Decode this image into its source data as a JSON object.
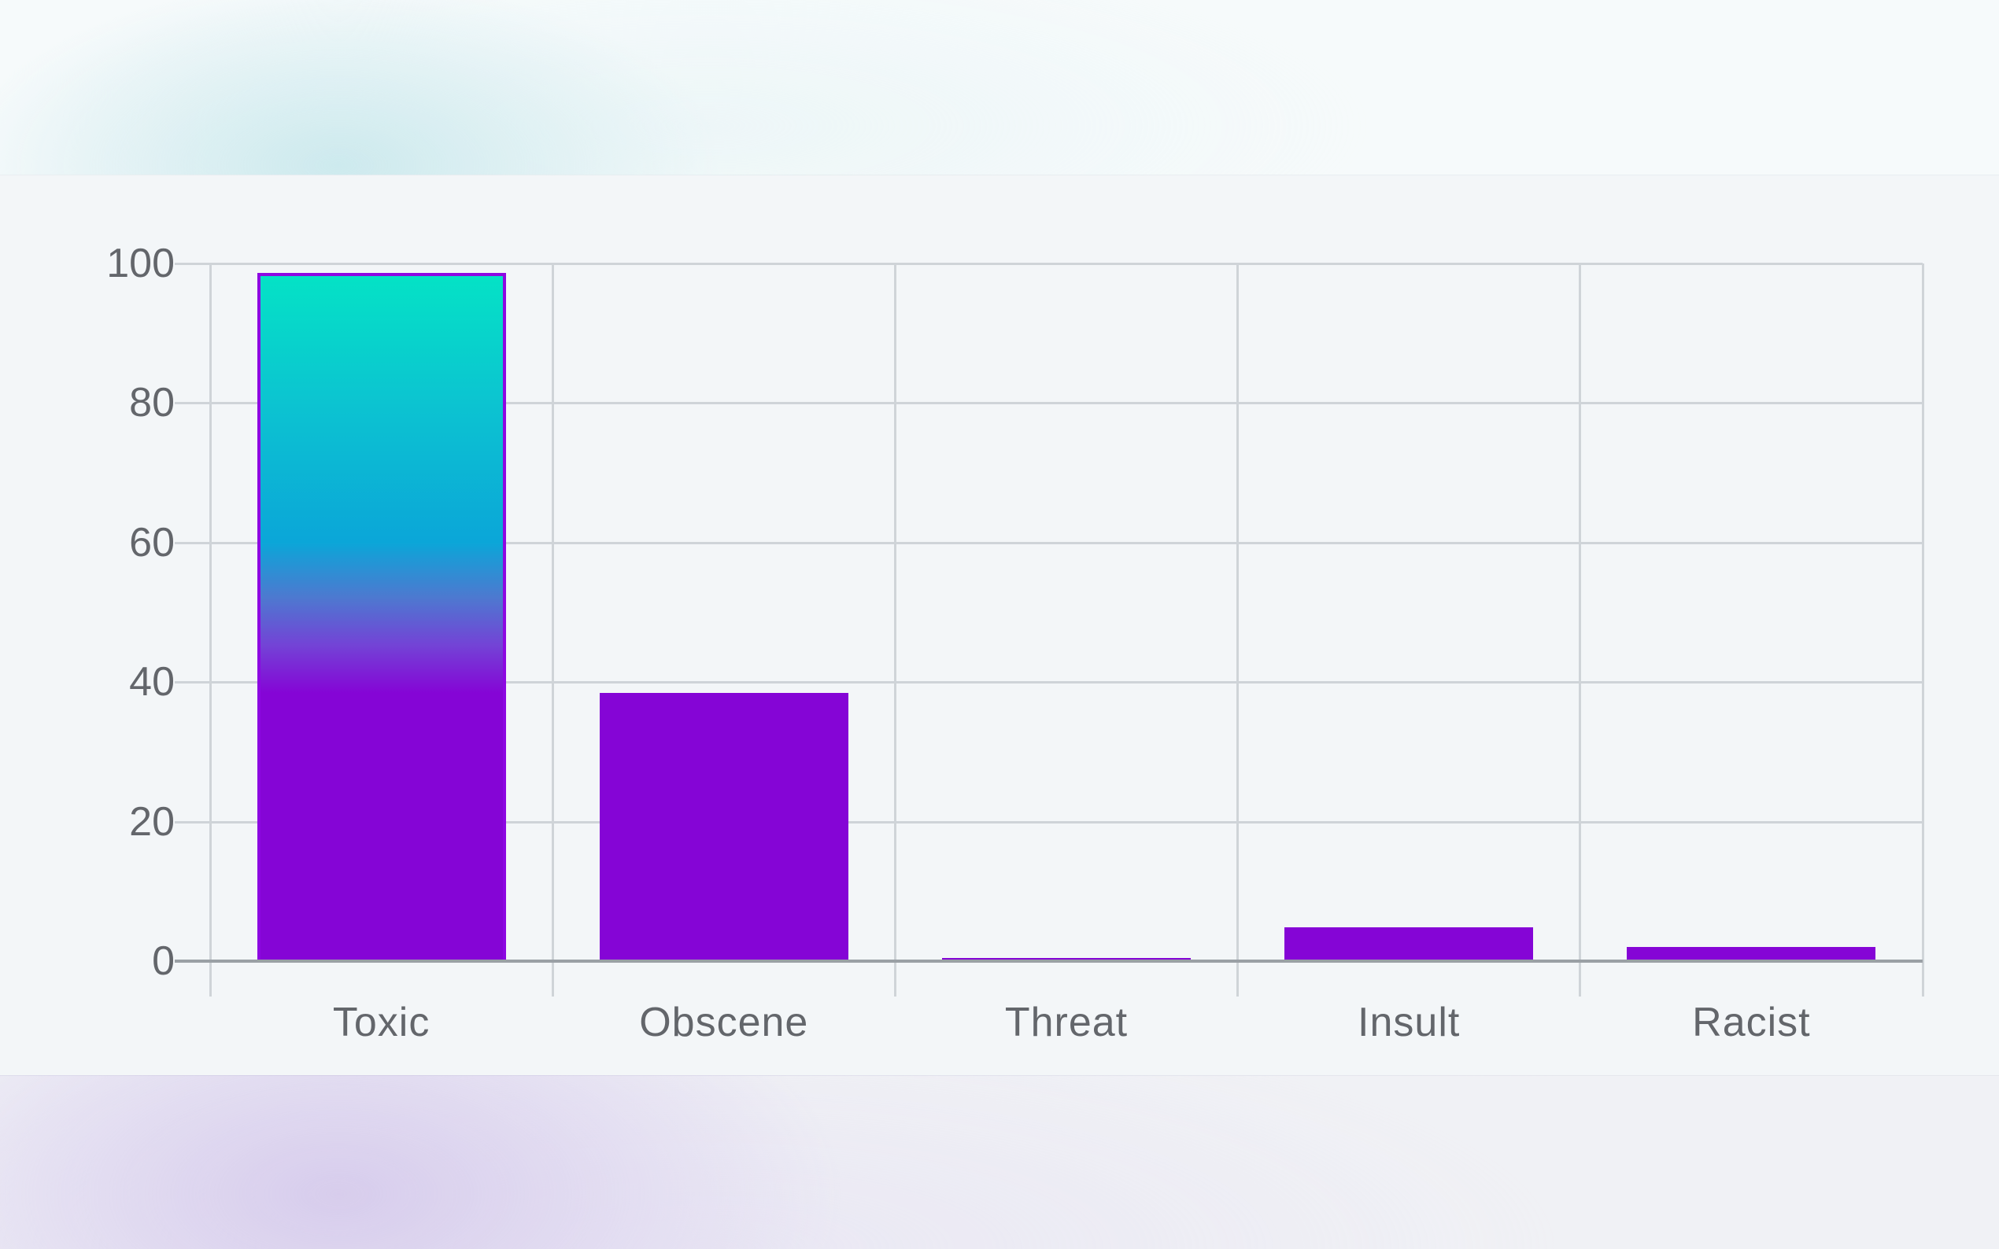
{
  "page": {
    "background": "#f3f6f8",
    "top_band_glow_color": "#cbe9ed",
    "bottom_band_glow_color": "#d6cbec"
  },
  "chart_data": {
    "type": "bar",
    "title": "",
    "xlabel": "",
    "ylabel": "",
    "categories": [
      "Toxic",
      "Obscene",
      "Threat",
      "Insult",
      "Racist"
    ],
    "values": [
      98.6,
      38.5,
      0.5,
      4.8,
      2.0
    ],
    "ylim": [
      0,
      100
    ],
    "yticks": [
      0,
      20,
      40,
      60,
      80,
      100
    ],
    "ytick_labels": [
      "0",
      "20",
      "40",
      "60",
      "80",
      "100"
    ],
    "grid": true,
    "legend": false,
    "axis_text_color": "#63666b",
    "gridline_color": "#cfd4d8",
    "axis_line_color": "#9aa0a5",
    "bar_fill": "#8505d6",
    "bar_border": "#8d07e2",
    "gradient_bar_index": 0,
    "gradient_stops": [
      {
        "pos": 0,
        "color": "#04e2c6"
      },
      {
        "pos": 19,
        "color": "#0cc3d1"
      },
      {
        "pos": 39,
        "color": "#0ba6d8"
      },
      {
        "pos": 47,
        "color": "#4d79d0"
      },
      {
        "pos": 54,
        "color": "#7343d6"
      },
      {
        "pos": 61,
        "color": "#8505d6"
      },
      {
        "pos": 100,
        "color": "#8505d6"
      }
    ]
  }
}
